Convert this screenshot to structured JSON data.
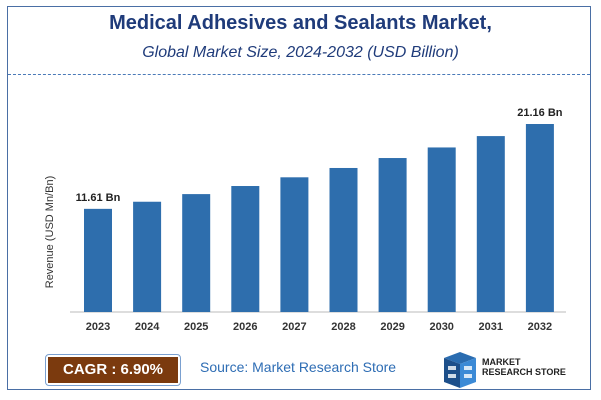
{
  "chart_data": {
    "type": "bar",
    "title": "Medical Adhesives and Sealants Market,",
    "subtitle": "Global Market Size, 2024-2032 (USD Billion)",
    "xlabel": "",
    "ylabel": "Revenue (USD Mn/Bn)",
    "categories": [
      "2023",
      "2024",
      "2025",
      "2026",
      "2027",
      "2028",
      "2029",
      "2030",
      "2031",
      "2032"
    ],
    "values": [
      11.61,
      12.41,
      13.27,
      14.18,
      15.16,
      16.21,
      17.33,
      18.52,
      19.8,
      21.16
    ],
    "data_labels": {
      "0": "11.61 Bn",
      "9": "21.16 Bn"
    },
    "ylim": [
      0,
      23
    ],
    "grid": false,
    "bar_color": "#2e6ead"
  },
  "cagr": "CAGR : 6.90%",
  "source": "Source: Market Research Store",
  "logo": {
    "line1": "MARKET",
    "line2": "RESEARCH STORE"
  },
  "colors": {
    "title": "#1f3b7a",
    "cagr_bg": "#7b3a0e",
    "source": "#2e6db4"
  }
}
